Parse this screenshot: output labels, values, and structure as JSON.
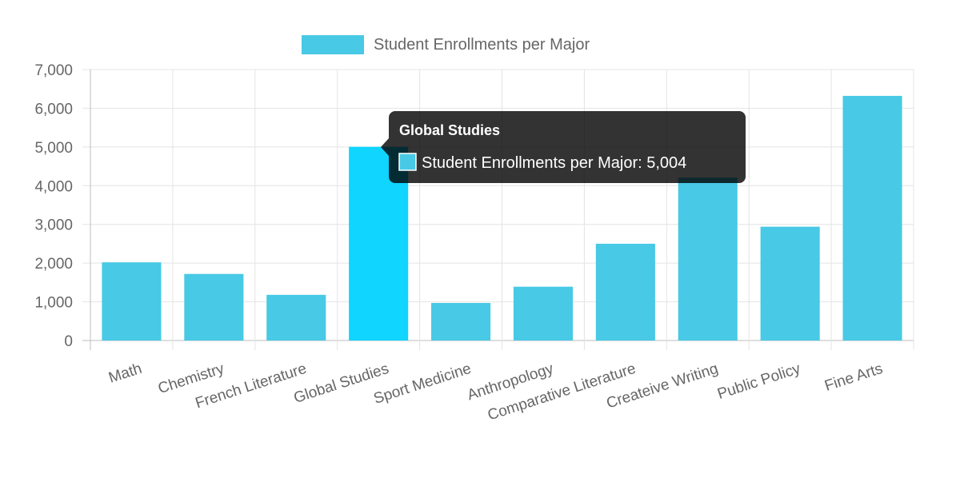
{
  "chart_data": {
    "type": "bar",
    "categories": [
      "Math",
      "Chemistry",
      "French Literature",
      "Global Studies",
      "Sport Medicine",
      "Anthropology",
      "Comparative Literature",
      "Createive Writing",
      "Public Policy",
      "Fine Arts"
    ],
    "series": [
      {
        "name": "Student Enrollments per Major",
        "values": [
          2020,
          1720,
          1180,
          5004,
          970,
          1390,
          2500,
          4210,
          2940,
          6320
        ]
      }
    ],
    "ylim": [
      0,
      7000
    ],
    "yticks": [
      0,
      1000,
      2000,
      3000,
      4000,
      5000,
      6000,
      7000
    ],
    "ytick_labels": [
      "0",
      "1,000",
      "2,000",
      "3,000",
      "4,000",
      "5,000",
      "6,000",
      "7,000"
    ],
    "grid": true,
    "legend_position": "top-center",
    "bar_color": "#48c9e5",
    "highlight_color": "#0fd5ff",
    "highlight_index": 3
  },
  "tooltip": {
    "title": "Global Studies",
    "body": "Student Enrollments per Major: 5,004"
  }
}
